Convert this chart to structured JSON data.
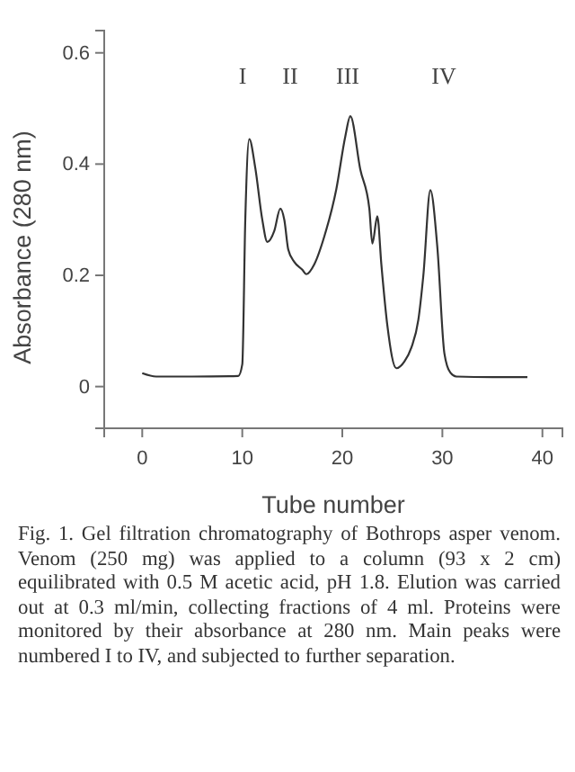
{
  "chart_data": {
    "type": "line",
    "xlabel": "Tube number",
    "ylabel": "Absorbance (280 nm)",
    "xlim": [
      -3.8,
      42
    ],
    "ylim": [
      -0.075,
      0.64
    ],
    "xticks": [
      0,
      10,
      20,
      30,
      40
    ],
    "yticks": [
      0,
      0.2,
      0.4,
      0.6
    ],
    "grid": false,
    "marker": "none",
    "line_style": "solid",
    "series": [
      {
        "color": "#333333",
        "x": [
          0,
          1.4,
          5,
          9.6,
          10.0,
          10.3,
          10.7,
          11.3,
          12.0,
          12.5,
          13.2,
          13.8,
          14.2,
          14.6,
          15.2,
          16.0,
          16.4,
          17.2,
          18.2,
          19.4,
          20.3,
          20.8,
          21.8,
          22.7,
          23.0,
          23.5,
          23.9,
          24.5,
          25.4,
          26.2,
          26.9,
          27.6,
          28.1,
          28.8,
          29.5,
          30.2,
          30.8,
          31.4,
          35,
          38.5
        ],
        "values": [
          0.024,
          0.018,
          0.018,
          0.019,
          0.04,
          0.3,
          0.445,
          0.393,
          0.3,
          0.26,
          0.28,
          0.32,
          0.3,
          0.246,
          0.224,
          0.21,
          0.202,
          0.22,
          0.27,
          0.355,
          0.45,
          0.486,
          0.39,
          0.32,
          0.257,
          0.306,
          0.22,
          0.11,
          0.033,
          0.045,
          0.07,
          0.12,
          0.2,
          0.353,
          0.25,
          0.06,
          0.025,
          0.018,
          0.017,
          0.017
        ]
      }
    ],
    "annotations": [
      "I",
      "II",
      "III",
      "IV",
      "Fig. 1. Gel filtration chromatography of Bothrops asper venom. Venom (250 mg) was applied to a column (93 x 2 cm) equilibrated with 0.5 M acetic acid, pH 1.8. Elution was carried out at 0.3 ml/min, collecting fractions of 4 ml. Proteins were monitored by their absorbance at 280 nm. Main peaks were numbered I to IV, and subjected to further separation."
    ]
  }
}
